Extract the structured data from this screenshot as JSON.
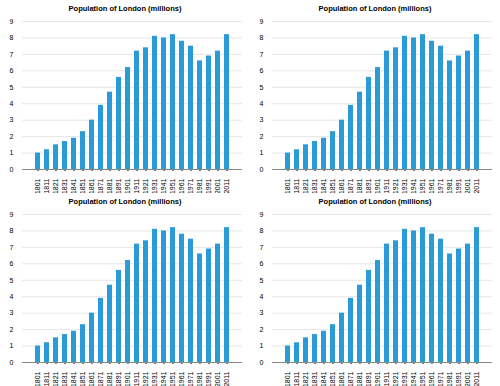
{
  "chart_data": [
    {
      "type": "bar",
      "title": "Population of London (millions)",
      "categories": [
        "1801",
        "1811",
        "1821",
        "1831",
        "1841",
        "1851",
        "1861",
        "1871",
        "1881",
        "1891",
        "1901",
        "1911",
        "1921",
        "1931",
        "1941",
        "1951",
        "1961",
        "1971",
        "1981",
        "1991",
        "2001",
        "2011"
      ],
      "values": [
        1.0,
        1.2,
        1.5,
        1.7,
        1.9,
        2.3,
        3.0,
        3.9,
        4.7,
        5.6,
        6.2,
        7.2,
        7.4,
        8.1,
        8.0,
        8.2,
        7.8,
        7.5,
        6.6,
        6.9,
        7.2,
        8.2
      ],
      "color": "#2b9bd8",
      "ylim": [
        0,
        9
      ],
      "yticks": [
        0,
        1,
        2,
        3,
        4,
        5,
        6,
        7,
        8,
        9
      ],
      "grid": true
    },
    {
      "type": "bar",
      "title": "Population of London (millions)",
      "categories": [
        "1801",
        "1811",
        "1821",
        "1831",
        "1841",
        "1851",
        "1861",
        "1871",
        "1881",
        "1891",
        "1901",
        "1911",
        "1921",
        "1931",
        "1941",
        "1951",
        "1961",
        "1971",
        "1981",
        "1991",
        "2001",
        "2011"
      ],
      "values": [
        1.0,
        1.2,
        1.5,
        1.7,
        1.9,
        2.3,
        3.0,
        3.9,
        4.7,
        5.6,
        6.2,
        7.2,
        7.4,
        8.1,
        8.0,
        8.2,
        7.8,
        7.5,
        6.6,
        6.9,
        7.2,
        8.2
      ],
      "color": "#2b9bd8",
      "ylim": [
        0,
        9
      ],
      "yticks": [
        0,
        1,
        2,
        3,
        4,
        5,
        6,
        7,
        8,
        9
      ],
      "grid": true
    },
    {
      "type": "bar",
      "title": "Population of London (millions)",
      "categories": [
        "1801",
        "1811",
        "1821",
        "1831",
        "1841",
        "1851",
        "1861",
        "1871",
        "1881",
        "1891",
        "1901",
        "1911",
        "1921",
        "1931",
        "1941",
        "1951",
        "1961",
        "1971",
        "1981",
        "1991",
        "2001",
        "2011"
      ],
      "values": [
        1.0,
        1.2,
        1.5,
        1.7,
        1.9,
        2.3,
        3.0,
        3.9,
        4.7,
        5.6,
        6.2,
        7.2,
        7.4,
        8.1,
        8.0,
        8.2,
        7.8,
        7.5,
        6.6,
        6.9,
        7.2,
        8.2
      ],
      "color": "#2b9bd8",
      "ylim": [
        0,
        9
      ],
      "yticks": [
        0,
        1,
        2,
        3,
        4,
        5,
        6,
        7,
        8,
        9
      ],
      "grid": true
    },
    {
      "type": "bar",
      "title": "Population of London (millions)",
      "categories": [
        "1801",
        "1811",
        "1821",
        "1831",
        "1841",
        "1851",
        "1861",
        "1871",
        "1881",
        "1891",
        "1901",
        "1911",
        "1921",
        "1931",
        "1941",
        "1951",
        "1961",
        "1971",
        "1981",
        "1991",
        "2001",
        "2011"
      ],
      "values": [
        1.0,
        1.2,
        1.5,
        1.7,
        1.9,
        2.3,
        3.0,
        3.9,
        4.7,
        5.6,
        6.2,
        7.2,
        7.4,
        8.1,
        8.0,
        8.2,
        7.8,
        7.5,
        6.6,
        6.9,
        7.2,
        8.2
      ],
      "color": "#2b9bd8",
      "ylim": [
        0,
        9
      ],
      "yticks": [
        0,
        1,
        2,
        3,
        4,
        5,
        6,
        7,
        8,
        9
      ],
      "grid": true
    }
  ]
}
